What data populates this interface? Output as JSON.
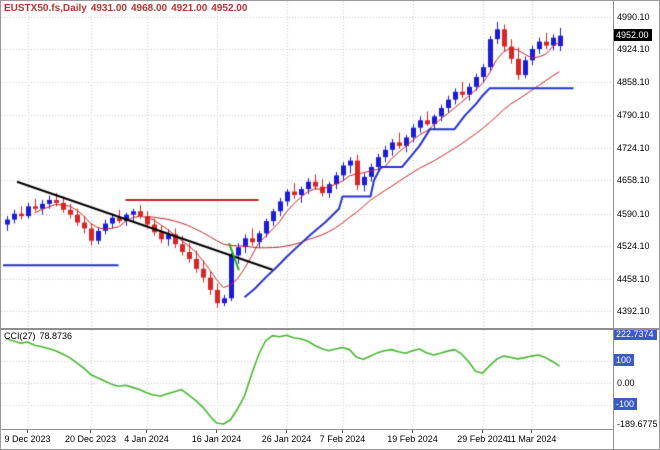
{
  "theme": {
    "background": "#ffffff",
    "grid": "#c9c9c9",
    "header_color": "#b73333",
    "axis_text": "#000000",
    "price_marker_bg": "#000000",
    "level_marker_bg": "#3a5bc7",
    "border": "#9a9a9a"
  },
  "header": {
    "symbol": "EUSTX50.fs,Daily",
    "open": "4931.00",
    "high": "4968.00",
    "low": "4921.00",
    "close": "4952.00"
  },
  "indicator_header": {
    "name": "CCI(27)",
    "value": "78.8736"
  },
  "chart_data": {
    "type": "candlestick",
    "symbol": "EUSTX50.fs",
    "timeframe": "Daily",
    "title": "EUSTX50.fs Daily candlestick chart with CCI(27) indicator",
    "grid": "dotted",
    "price_range": [
      4392.1,
      4990.1
    ],
    "price_ticks": [
      {
        "text": "4990.10",
        "value": 4990.1
      },
      {
        "text": "4924.10",
        "value": 4924.1
      },
      {
        "text": "4858.10",
        "value": 4858.1
      },
      {
        "text": "4790.10",
        "value": 4790.1
      },
      {
        "text": "4724.10",
        "value": 4724.1
      },
      {
        "text": "4658.10",
        "value": 4658.1
      },
      {
        "text": "4590.10",
        "value": 4590.1
      },
      {
        "text": "4524.10",
        "value": 4524.1
      },
      {
        "text": "4458.10",
        "value": 4458.1
      },
      {
        "text": "4392.10",
        "value": 4392.1
      }
    ],
    "current_price": {
      "text": "4952.00",
      "value": 4952.0
    },
    "time_ticks": [
      {
        "text": "9 Dec 2023",
        "index": 3
      },
      {
        "text": "20 Dec 2023",
        "index": 12
      },
      {
        "text": "4 Jan 2024",
        "index": 20
      },
      {
        "text": "16 Jan 2024",
        "index": 30
      },
      {
        "text": "26 Jan 2024",
        "index": 40
      },
      {
        "text": "7 Feb 2024",
        "index": 48
      },
      {
        "text": "19 Feb 2024",
        "index": 58
      },
      {
        "text": "29 Feb 2024",
        "index": 68
      },
      {
        "text": "11 Mar 2024",
        "index": 75
      }
    ],
    "bull_color": "#1c1cd8",
    "bear_color": "#d82626",
    "candles": {
      "open": [
        4568,
        4578,
        4590,
        4585,
        4605,
        4600,
        4610,
        4618,
        4612,
        4598,
        4588,
        4572,
        4560,
        4535,
        4555,
        4570,
        4582,
        4575,
        4588,
        4595,
        4585,
        4568,
        4552,
        4538,
        4548,
        4528,
        4512,
        4498,
        4478,
        4460,
        4435,
        4408,
        4418,
        4505,
        4522,
        4540,
        4532,
        4550,
        4575,
        4595,
        4615,
        4635,
        4628,
        4640,
        4655,
        4645,
        4632,
        4650,
        4668,
        4688,
        4698,
        4648,
        4665,
        4685,
        4705,
        4720,
        4735,
        4728,
        4745,
        4765,
        4780,
        4772,
        4788,
        4805,
        4822,
        4838,
        4832,
        4848,
        4868,
        4888,
        4945,
        4965,
        4930,
        4905,
        4872,
        4902,
        4925,
        4940,
        4932,
        4931
      ],
      "high": [
        4585,
        4598,
        4605,
        4612,
        4620,
        4618,
        4627,
        4632,
        4625,
        4610,
        4600,
        4585,
        4570,
        4562,
        4578,
        4590,
        4598,
        4592,
        4600,
        4608,
        4595,
        4580,
        4565,
        4558,
        4560,
        4545,
        4530,
        4515,
        4495,
        4472,
        4448,
        4425,
        4510,
        4530,
        4548,
        4560,
        4555,
        4580,
        4600,
        4622,
        4640,
        4652,
        4645,
        4662,
        4670,
        4660,
        4655,
        4675,
        4695,
        4705,
        4710,
        4672,
        4692,
        4712,
        4728,
        4742,
        4755,
        4750,
        4772,
        4788,
        4798,
        4792,
        4812,
        4830,
        4845,
        4858,
        4855,
        4875,
        4895,
        4952,
        4980,
        4975,
        4945,
        4928,
        4910,
        4932,
        4948,
        4958,
        4955,
        4968
      ],
      "low": [
        4555,
        4570,
        4578,
        4580,
        4595,
        4588,
        4600,
        4605,
        4592,
        4580,
        4565,
        4550,
        4525,
        4528,
        4548,
        4560,
        4570,
        4565,
        4575,
        4580,
        4560,
        4545,
        4530,
        4525,
        4520,
        4505,
        4490,
        4470,
        4450,
        4425,
        4398,
        4402,
        4412,
        4488,
        4510,
        4525,
        4520,
        4542,
        4565,
        4585,
        4605,
        4620,
        4612,
        4630,
        4638,
        4625,
        4622,
        4640,
        4658,
        4672,
        4638,
        4635,
        4655,
        4675,
        4695,
        4708,
        4722,
        4715,
        4735,
        4755,
        4768,
        4760,
        4778,
        4795,
        4812,
        4825,
        4820,
        4840,
        4858,
        4880,
        4935,
        4920,
        4895,
        4862,
        4865,
        4892,
        4915,
        4925,
        4922,
        4921
      ],
      "close": [
        4578,
        4590,
        4585,
        4605,
        4600,
        4610,
        4618,
        4612,
        4598,
        4588,
        4572,
        4560,
        4535,
        4555,
        4570,
        4582,
        4575,
        4588,
        4595,
        4585,
        4568,
        4552,
        4538,
        4548,
        4528,
        4512,
        4498,
        4478,
        4460,
        4435,
        4408,
        4418,
        4505,
        4522,
        4540,
        4532,
        4550,
        4575,
        4595,
        4615,
        4635,
        4628,
        4640,
        4655,
        4645,
        4632,
        4650,
        4668,
        4688,
        4698,
        4648,
        4665,
        4685,
        4705,
        4720,
        4735,
        4728,
        4745,
        4765,
        4780,
        4772,
        4788,
        4805,
        4822,
        4838,
        4832,
        4848,
        4868,
        4888,
        4945,
        4965,
        4930,
        4905,
        4872,
        4902,
        4925,
        4940,
        4932,
        4948,
        4952
      ]
    },
    "overlays": [
      {
        "name": "ma-fast",
        "type": "sma",
        "period": 5,
        "color": "#cc2222",
        "width": 1
      },
      {
        "name": "ma-slow",
        "type": "sma",
        "period": 21,
        "color": "#cc2222",
        "width": 1
      }
    ],
    "step_line": {
      "name": "blue-trailing-step-line",
      "color": "#2633cc",
      "width": 2,
      "segments": [
        [
          [
            -0.5,
            4485
          ],
          [
            16,
            4485
          ]
        ],
        [
          [
            34,
            4420
          ],
          [
            35.5,
            4438
          ],
          [
            37,
            4460
          ],
          [
            38.5,
            4480
          ],
          [
            40,
            4502
          ],
          [
            41.5,
            4522
          ],
          [
            43.5,
            4548
          ],
          [
            45.5,
            4572
          ],
          [
            47.5,
            4600
          ],
          [
            48,
            4625
          ],
          [
            52,
            4625
          ],
          [
            52.5,
            4658
          ],
          [
            53.5,
            4685
          ],
          [
            56.5,
            4685
          ],
          [
            57.5,
            4702
          ],
          [
            59,
            4728
          ],
          [
            60.5,
            4762
          ],
          [
            64,
            4762
          ],
          [
            65.5,
            4790
          ],
          [
            67,
            4812
          ],
          [
            68,
            4830
          ],
          [
            69,
            4845
          ],
          [
            81,
            4845
          ]
        ]
      ]
    },
    "objects": [
      {
        "name": "descending-trendline",
        "color": "#000000",
        "width": 2,
        "points": [
          [
            1.5,
            4655
          ],
          [
            38,
            4476
          ]
        ]
      },
      {
        "name": "red-horizontal-line",
        "color": "#cc2222",
        "width": 2,
        "points": [
          [
            17,
            4618
          ],
          [
            36,
            4618
          ]
        ]
      },
      {
        "name": "green-marker-segment",
        "color": "#22aa22",
        "width": 2,
        "points": [
          [
            31.8,
            4530
          ],
          [
            33.2,
            4475
          ]
        ]
      }
    ],
    "indicator": {
      "name": "CCI",
      "period": 27,
      "current_value": 78.8736,
      "range": [
        -189.6775,
        222.7374
      ],
      "levels": [
        100,
        0,
        -100
      ],
      "color": "#46b82e",
      "axis_ticks": [
        {
          "text": "222.7374",
          "value": 222.7374,
          "boxed": true
        },
        {
          "text": "100",
          "value": 100,
          "boxed": true
        },
        {
          "text": "0.00",
          "value": 0,
          "boxed": false
        },
        {
          "text": "-100",
          "value": -100,
          "boxed": true
        },
        {
          "text": "-189.6775",
          "value": -189.6775,
          "boxed": false
        }
      ],
      "values": [
        205,
        195,
        185,
        190,
        175,
        168,
        160,
        150,
        135,
        118,
        95,
        70,
        40,
        25,
        10,
        -5,
        -15,
        -10,
        -20,
        -30,
        -45,
        -55,
        -60,
        -50,
        -40,
        -30,
        -55,
        -80,
        -110,
        -150,
        -185,
        -189.68,
        -170,
        -120,
        -60,
        40,
        130,
        195,
        220,
        215,
        222,
        210,
        205,
        195,
        175,
        160,
        150,
        158,
        165,
        155,
        120,
        110,
        125,
        140,
        150,
        155,
        145,
        138,
        150,
        158,
        140,
        130,
        138,
        148,
        155,
        135,
        100,
        55,
        45,
        80,
        110,
        125,
        120,
        112,
        118,
        125,
        130,
        118,
        100,
        78.8736
      ]
    }
  }
}
